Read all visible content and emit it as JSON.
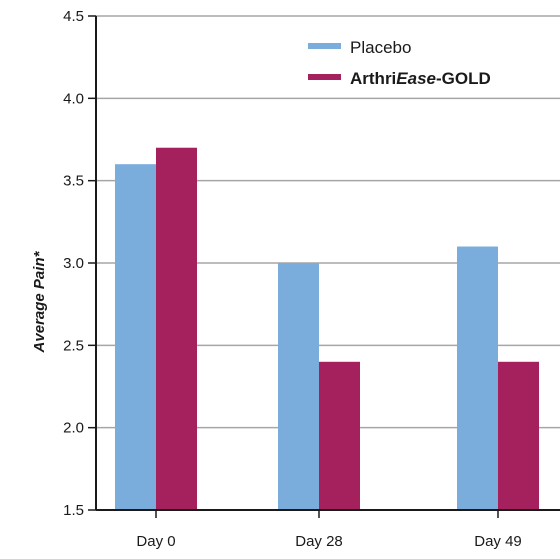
{
  "colors": {
    "placebo": "#7aacdc",
    "arthriease": "#a4215d",
    "grid": "#a6a6a6",
    "axis": "#1a1a1a"
  },
  "chart_data": {
    "type": "bar",
    "categories": [
      "Day 0",
      "Day 28",
      "Day 49"
    ],
    "series": [
      {
        "name": "Placebo",
        "values": [
          3.6,
          3.0,
          3.1
        ]
      },
      {
        "name": "ArthriEase-GOLD",
        "values": [
          3.7,
          2.4,
          2.4
        ]
      }
    ],
    "legend": {
      "placebo": "Placebo",
      "arthriease_prefix": "Arthri",
      "arthriease_italic": "Ease",
      "arthriease_suffix": "-GOLD"
    },
    "ylabel": "Average Pain*",
    "ylim": [
      1.5,
      4.5
    ],
    "yticks": [
      "1.5",
      "2.0",
      "2.5",
      "3.0",
      "3.5",
      "4.0",
      "4.5"
    ],
    "grid": true,
    "legend_position": "top-right"
  }
}
